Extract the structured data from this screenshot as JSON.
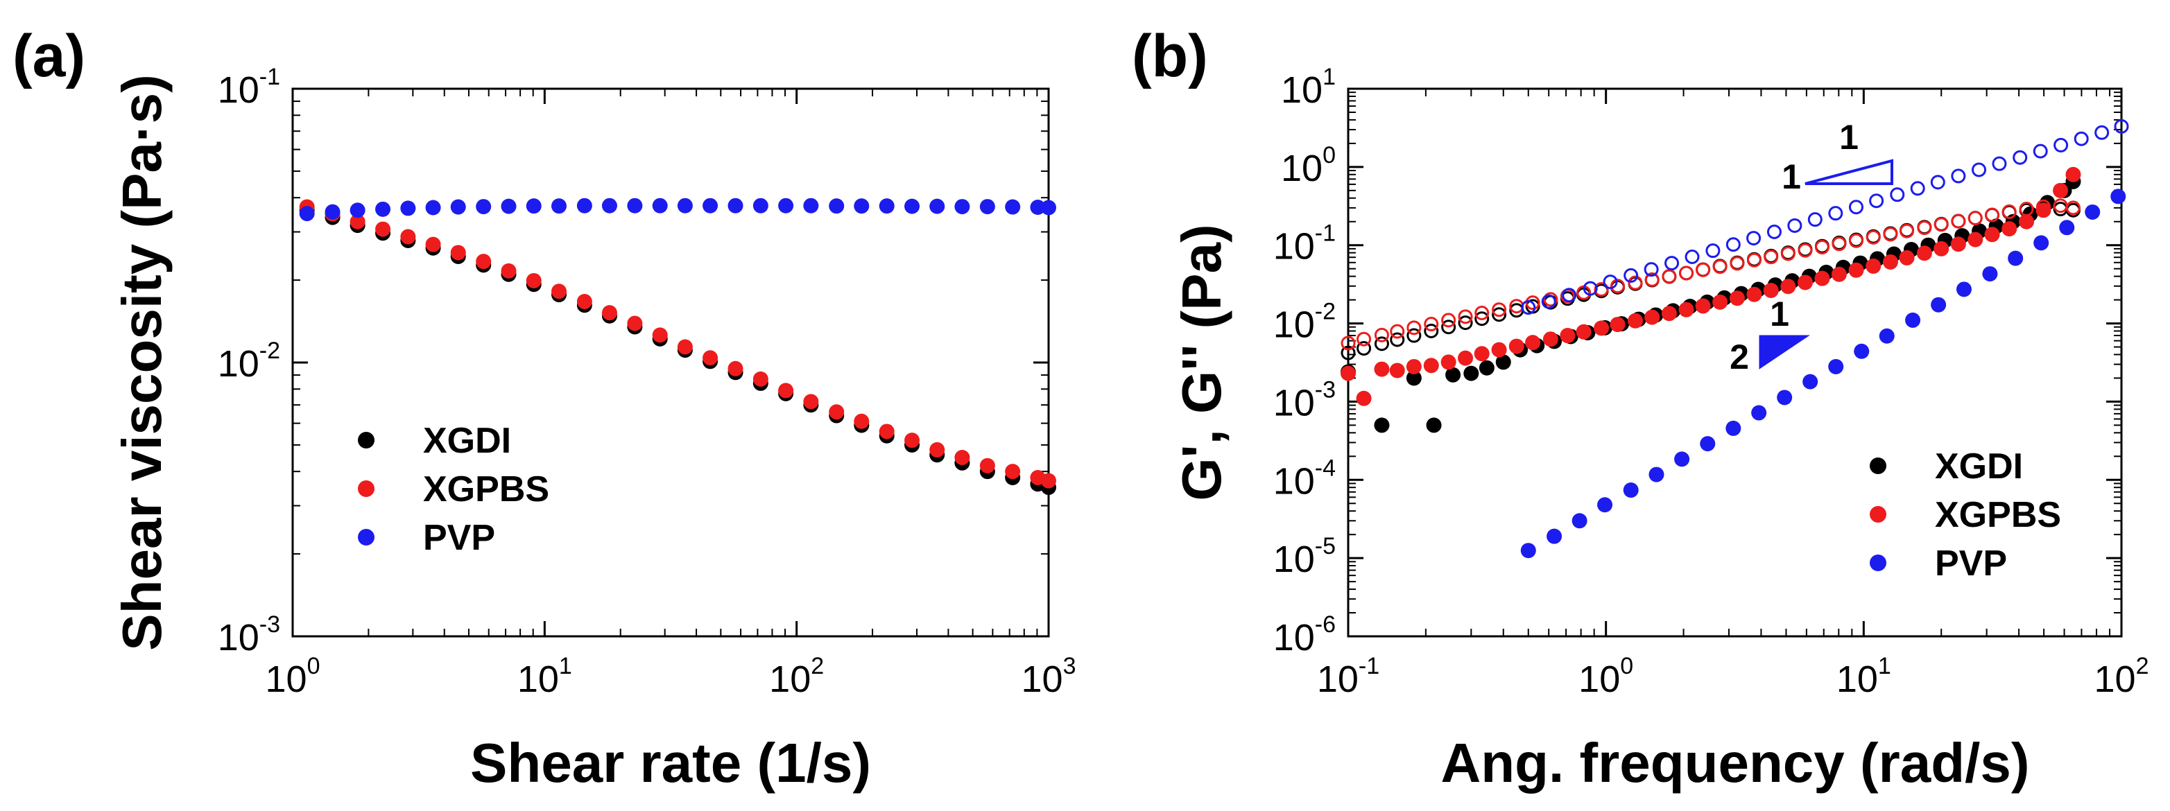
{
  "chart_data": [
    {
      "type": "scatter",
      "panel_label": "(a)",
      "xlabel": "Shear rate (1/s)",
      "ylabel": "Shear viscosity (Pa·s)",
      "xscale": "log",
      "yscale": "log",
      "xlim": [
        1,
        1000
      ],
      "ylim": [
        0.001,
        0.1
      ],
      "x_ticks": [
        {
          "base": "10",
          "exp": "0"
        },
        {
          "base": "10",
          "exp": "1"
        },
        {
          "base": "10",
          "exp": "2"
        },
        {
          "base": "10",
          "exp": "3"
        }
      ],
      "y_ticks": [
        {
          "base": "10",
          "exp": "-3"
        },
        {
          "base": "10",
          "exp": "-2"
        },
        {
          "base": "10",
          "exp": "-1"
        }
      ],
      "legend_position": "lower-left",
      "series": [
        {
          "name": "XGDI",
          "color": "#000000",
          "marker": "filled-circle",
          "x": [
            1.14,
            1.44,
            1.81,
            2.28,
            2.87,
            3.61,
            4.54,
            5.72,
            7.2,
            9.06,
            11.4,
            14.4,
            18.1,
            22.8,
            28.7,
            36.1,
            45.4,
            57.2,
            72.0,
            90.6,
            114,
            144,
            181,
            228,
            287,
            361,
            454,
            572,
            720,
            906,
            1000
          ],
          "y": [
            0.036,
            0.0339,
            0.0317,
            0.0297,
            0.0279,
            0.0262,
            0.0244,
            0.0227,
            0.021,
            0.0193,
            0.0177,
            0.0162,
            0.0148,
            0.0135,
            0.0122,
            0.0111,
            0.0101,
            0.0092,
            0.0084,
            0.0077,
            0.007,
            0.0064,
            0.0059,
            0.0054,
            0.005,
            0.0046,
            0.0043,
            0.004,
            0.0038,
            0.0036,
            0.0035
          ]
        },
        {
          "name": "XGPBS",
          "color": "#ee1c1c",
          "marker": "filled-circle",
          "x": [
            1.14,
            1.44,
            1.81,
            2.28,
            2.87,
            3.61,
            4.54,
            5.72,
            7.2,
            9.06,
            11.4,
            14.4,
            18.1,
            22.8,
            28.7,
            36.1,
            45.4,
            57.2,
            72.0,
            90.6,
            114,
            144,
            181,
            228,
            287,
            361,
            454,
            572,
            720,
            906,
            1000
          ],
          "y": [
            0.037,
            0.0349,
            0.0327,
            0.0307,
            0.0288,
            0.027,
            0.0252,
            0.0234,
            0.0216,
            0.0199,
            0.0182,
            0.0167,
            0.0152,
            0.0139,
            0.0126,
            0.0114,
            0.0104,
            0.0095,
            0.0087,
            0.0079,
            0.0072,
            0.0066,
            0.0061,
            0.0056,
            0.0052,
            0.0048,
            0.0045,
            0.0042,
            0.004,
            0.0038,
            0.0037
          ]
        },
        {
          "name": "PVP",
          "color": "#1c1cee",
          "marker": "filled-circle",
          "x": [
            1.14,
            1.44,
            1.81,
            2.28,
            2.87,
            3.61,
            4.54,
            5.72,
            7.2,
            9.06,
            11.4,
            14.4,
            18.1,
            22.8,
            28.7,
            36.1,
            45.4,
            57.2,
            72.0,
            90.6,
            114,
            144,
            181,
            228,
            287,
            361,
            454,
            572,
            720,
            906,
            1000
          ],
          "y": [
            0.035,
            0.0355,
            0.036,
            0.0363,
            0.0366,
            0.0368,
            0.037,
            0.0371,
            0.0372,
            0.0373,
            0.0373,
            0.0374,
            0.0374,
            0.0374,
            0.0374,
            0.0374,
            0.0374,
            0.0374,
            0.0374,
            0.0374,
            0.0374,
            0.0373,
            0.0373,
            0.0373,
            0.0372,
            0.0372,
            0.0371,
            0.0371,
            0.037,
            0.0369,
            0.0368
          ]
        }
      ]
    },
    {
      "type": "scatter",
      "panel_label": "(b)",
      "xlabel": "Ang. frequency (rad/s)",
      "ylabel": "G', G'' (Pa)",
      "xscale": "log",
      "yscale": "log",
      "xlim": [
        0.1,
        100
      ],
      "ylim": [
        1e-06,
        10
      ],
      "x_ticks": [
        {
          "base": "10",
          "exp": "-1"
        },
        {
          "base": "10",
          "exp": "0"
        },
        {
          "base": "10",
          "exp": "1"
        },
        {
          "base": "10",
          "exp": "2"
        }
      ],
      "y_ticks": [
        {
          "base": "10",
          "exp": "-6"
        },
        {
          "base": "10",
          "exp": "-5"
        },
        {
          "base": "10",
          "exp": "-4"
        },
        {
          "base": "10",
          "exp": "-3"
        },
        {
          "base": "10",
          "exp": "-2"
        },
        {
          "base": "10",
          "exp": "-1"
        },
        {
          "base": "10",
          "exp": "0"
        },
        {
          "base": "10",
          "exp": "1"
        }
      ],
      "legend_position": "lower-right",
      "note": "Filled markers: G'; open markers: G''",
      "slope_annotations": [
        {
          "top": "1",
          "side": "1",
          "style": "open",
          "color": "#1c1cee"
        },
        {
          "top": "1",
          "side": "2",
          "style": "filled",
          "color": "#1c1cee"
        }
      ],
      "series": [
        {
          "name": "XGDI",
          "modulus": "G'",
          "color": "#000000",
          "marker": "filled-circle",
          "x": [
            0.1,
            0.135,
            0.18,
            0.215,
            0.255,
            0.3,
            0.345,
            0.4,
            0.465,
            0.54,
            0.63,
            0.73,
            0.85,
            0.99,
            1.15,
            1.34,
            1.56,
            1.82,
            2.12,
            2.47,
            2.88,
            3.35,
            3.9,
            4.54,
            5.28,
            6.15,
            7.16,
            8.33,
            9.7,
            11.3,
            13.1,
            15.3,
            17.8,
            20.7,
            24.1,
            28.1,
            32.7,
            38.0,
            44.3,
            51.6,
            60.0,
            65.0
          ],
          "y": [
            0.0024,
            0.0005,
            0.002,
            0.0005,
            0.0022,
            0.0023,
            0.0027,
            0.0032,
            0.0046,
            0.0052,
            0.0059,
            0.0068,
            0.0076,
            0.0088,
            0.0099,
            0.0113,
            0.0128,
            0.0145,
            0.0165,
            0.0187,
            0.0212,
            0.024,
            0.0272,
            0.031,
            0.035,
            0.04,
            0.045,
            0.052,
            0.059,
            0.067,
            0.077,
            0.088,
            0.1,
            0.115,
            0.132,
            0.152,
            0.175,
            0.2,
            0.25,
            0.35,
            0.5,
            0.65
          ]
        },
        {
          "name": "XGDI",
          "modulus": "G''",
          "color": "#000000",
          "marker": "open-circle",
          "x": [
            0.1,
            0.115,
            0.135,
            0.155,
            0.18,
            0.21,
            0.245,
            0.285,
            0.33,
            0.385,
            0.45,
            0.52,
            0.61,
            0.71,
            0.82,
            0.96,
            1.11,
            1.3,
            1.51,
            1.76,
            2.05,
            2.38,
            2.77,
            3.23,
            3.76,
            4.37,
            5.09,
            5.93,
            6.9,
            8.03,
            9.35,
            10.9,
            12.7,
            14.7,
            17.2,
            20.0,
            23.3,
            27.1,
            31.5,
            36.7,
            42.8,
            49.8,
            58.0,
            65.0
          ],
          "y": [
            0.0042,
            0.0048,
            0.0055,
            0.0062,
            0.007,
            0.008,
            0.009,
            0.0102,
            0.0115,
            0.013,
            0.0147,
            0.0165,
            0.0186,
            0.0208,
            0.0233,
            0.026,
            0.029,
            0.0322,
            0.0358,
            0.0397,
            0.044,
            0.0487,
            0.054,
            0.0596,
            0.0658,
            0.0726,
            0.08,
            0.088,
            0.097,
            0.107,
            0.117,
            0.129,
            0.141,
            0.155,
            0.17,
            0.186,
            0.203,
            0.222,
            0.242,
            0.263,
            0.28,
            0.29,
            0.29,
            0.28
          ]
        },
        {
          "name": "XGPBS",
          "modulus": "G'",
          "color": "#ee1c1c",
          "marker": "filled-circle",
          "x": [
            0.1,
            0.115,
            0.135,
            0.155,
            0.18,
            0.21,
            0.245,
            0.285,
            0.33,
            0.385,
            0.45,
            0.52,
            0.61,
            0.71,
            0.82,
            0.96,
            1.11,
            1.3,
            1.51,
            1.76,
            2.05,
            2.38,
            2.77,
            3.23,
            3.76,
            4.37,
            5.09,
            5.93,
            6.9,
            8.03,
            9.35,
            10.9,
            12.7,
            14.7,
            17.2,
            20.0,
            23.3,
            27.1,
            31.5,
            36.7,
            42.8,
            49.8,
            58.0,
            65.0
          ],
          "y": [
            0.0023,
            0.0011,
            0.0026,
            0.0025,
            0.0028,
            0.0029,
            0.0032,
            0.0036,
            0.0041,
            0.0046,
            0.0051,
            0.0057,
            0.0063,
            0.007,
            0.0078,
            0.0087,
            0.0097,
            0.0108,
            0.012,
            0.0134,
            0.015,
            0.0167,
            0.0187,
            0.021,
            0.0235,
            0.0264,
            0.0297,
            0.0334,
            0.0376,
            0.0424,
            0.048,
            0.054,
            0.061,
            0.069,
            0.079,
            0.09,
            0.103,
            0.118,
            0.137,
            0.162,
            0.2,
            0.28,
            0.5,
            0.8
          ]
        },
        {
          "name": "XGPBS",
          "modulus": "G''",
          "color": "#ee1c1c",
          "marker": "open-circle",
          "x": [
            0.1,
            0.115,
            0.135,
            0.155,
            0.18,
            0.21,
            0.245,
            0.285,
            0.33,
            0.385,
            0.45,
            0.52,
            0.61,
            0.71,
            0.82,
            0.96,
            1.11,
            1.3,
            1.51,
            1.76,
            2.05,
            2.38,
            2.77,
            3.23,
            3.76,
            4.37,
            5.09,
            5.93,
            6.9,
            8.03,
            9.35,
            10.9,
            12.7,
            14.7,
            17.2,
            20.0,
            23.3,
            27.1,
            31.5,
            36.7,
            42.8,
            49.8,
            58.0,
            65.0
          ],
          "y": [
            0.0056,
            0.0063,
            0.0071,
            0.0079,
            0.0088,
            0.0098,
            0.011,
            0.0122,
            0.0136,
            0.015,
            0.0166,
            0.0184,
            0.0203,
            0.0224,
            0.0247,
            0.0272,
            0.03,
            0.033,
            0.0363,
            0.04,
            0.044,
            0.0484,
            0.0532,
            0.0585,
            0.0644,
            0.0708,
            0.078,
            0.0858,
            0.0944,
            0.104,
            0.114,
            0.126,
            0.138,
            0.152,
            0.167,
            0.184,
            0.202,
            0.222,
            0.244,
            0.268,
            0.29,
            0.31,
            0.32,
            0.3
          ]
        },
        {
          "name": "PVP",
          "modulus": "G'",
          "color": "#1c1cee",
          "marker": "filled-circle",
          "x": [
            0.5,
            0.63,
            0.79,
            0.99,
            1.25,
            1.57,
            1.97,
            2.48,
            3.12,
            3.92,
            4.93,
            6.2,
            7.8,
            9.81,
            12.3,
            15.5,
            19.5,
            24.5,
            30.9,
            38.8,
            48.8,
            61.4,
            77.2,
            97.1
          ],
          "y": [
            1.25e-05,
            1.9e-05,
            3e-05,
            4.8e-05,
            7.4e-05,
            0.000117,
            0.000184,
            0.00029,
            0.000456,
            0.00072,
            0.00113,
            0.0018,
            0.0028,
            0.0044,
            0.0069,
            0.011,
            0.0173,
            0.0273,
            0.043,
            0.068,
            0.107,
            0.168,
            0.265,
            0.42
          ]
        },
        {
          "name": "PVP",
          "modulus": "G''",
          "color": "#1c1cee",
          "marker": "open-circle",
          "x": [
            0.5,
            0.6,
            0.72,
            0.87,
            1.04,
            1.25,
            1.5,
            1.8,
            2.16,
            2.6,
            3.12,
            3.74,
            4.5,
            5.4,
            6.48,
            7.78,
            9.35,
            11.2,
            13.5,
            16.2,
            19.4,
            23.3,
            28.0,
            33.6,
            40.4,
            48.5,
            58.2,
            69.9,
            83.9,
            100.0
          ],
          "y": [
            0.016,
            0.019,
            0.023,
            0.028,
            0.034,
            0.041,
            0.049,
            0.059,
            0.071,
            0.085,
            0.102,
            0.123,
            0.148,
            0.178,
            0.213,
            0.256,
            0.307,
            0.369,
            0.443,
            0.532,
            0.638,
            0.766,
            0.92,
            1.1,
            1.32,
            1.59,
            1.9,
            2.29,
            2.75,
            3.3
          ]
        }
      ]
    }
  ]
}
